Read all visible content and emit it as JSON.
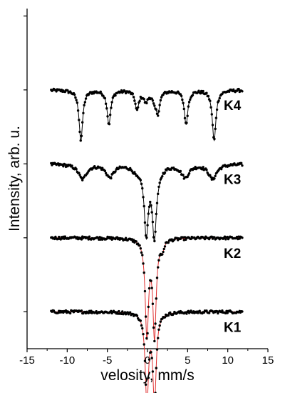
{
  "chart_data": {
    "type": "line",
    "xlabel": "velosity, mm/s",
    "ylabel": "Intensity, arb. u.",
    "xlim": [
      -15,
      15
    ],
    "xticks": [
      -15,
      -10,
      -5,
      0,
      5,
      10,
      15
    ],
    "y_axis_tick_labels": "none",
    "grid": false,
    "legend": "none (series labeled to the right of each curve)",
    "marker": "filled circle",
    "colors": {
      "data": "#000000",
      "fit": "#e03030"
    },
    "y_range": [
      0,
      4.6
    ],
    "series": [
      {
        "name": "K4",
        "offset": 3.5,
        "x_range": [
          -12,
          11.8
        ],
        "fit_line": "black",
        "components": [
          {
            "kind": "sextet",
            "center": 0.0,
            "splitting": 16.6,
            "depths": [
              0.68,
              0.46,
              0.26,
              0.26,
              0.46,
              0.68
            ],
            "width": 0.55
          },
          {
            "kind": "doublet",
            "center": 0.35,
            "separation": 1.1,
            "depth": 0.14,
            "width": 0.65
          }
        ]
      },
      {
        "name": "K3",
        "offset": 2.5,
        "x_range": [
          -12,
          11.8
        ],
        "fit_line": "black",
        "components": [
          {
            "kind": "sextet",
            "center": 0.0,
            "splitting": 16.2,
            "depths": [
              0.2,
              0.17,
              0.09,
              0.09,
              0.17,
              0.2
            ],
            "width": 1.2
          },
          {
            "kind": "doublet",
            "center": 0.35,
            "separation": 1.0,
            "depth": 0.9,
            "width": 0.6
          }
        ]
      },
      {
        "name": "K2",
        "offset": 1.5,
        "x_range": [
          -12,
          11.8
        ],
        "fit_line": "red",
        "components": [
          {
            "kind": "doublet",
            "center": 0.4,
            "separation": 0.95,
            "depth": 1.3,
            "width": 0.5
          },
          {
            "kind": "single",
            "position": 1.85,
            "depth": 0.12,
            "width": 0.5
          }
        ]
      },
      {
        "name": "K1",
        "offset": 0.5,
        "x_range": [
          -12,
          11.8
        ],
        "fit_line": "red",
        "components": [
          {
            "kind": "doublet",
            "center": 0.4,
            "separation": 0.95,
            "depth": 1.2,
            "width": 0.5
          }
        ]
      }
    ]
  }
}
